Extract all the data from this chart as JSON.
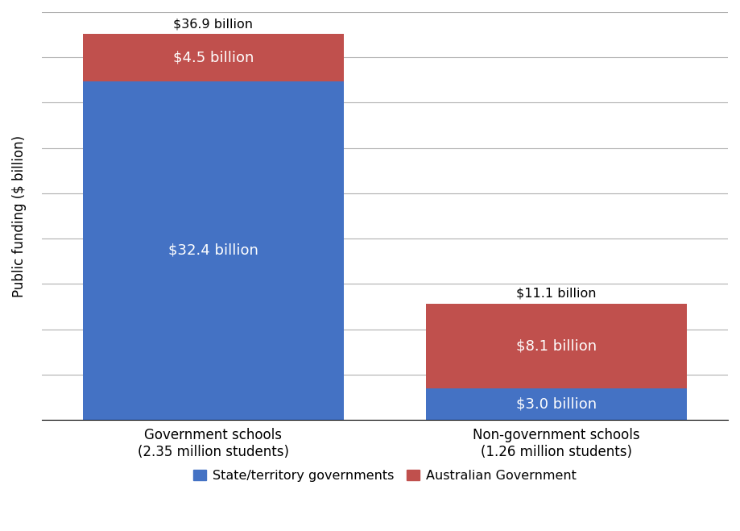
{
  "categories": [
    "Government schools\n(2.35 million students)",
    "Non-government schools\n(1.26 million students)"
  ],
  "state_values": [
    32.4,
    3.0
  ],
  "federal_values": [
    4.5,
    8.1
  ],
  "totals": [
    "$36.9 billion",
    "$11.1 billion"
  ],
  "state_labels": [
    "$32.4 billion",
    "$3.0 billion"
  ],
  "federal_labels": [
    "$4.5 billion",
    "$8.1 billion"
  ],
  "state_color": "#4472C4",
  "federal_color": "#C0504D",
  "ylabel": "Public funding ($ billion)",
  "legend_state": "State/territory governments",
  "legend_federal": "Australian Government",
  "ylim": [
    0,
    39
  ],
  "num_gridlines": 9,
  "background_color": "#ffffff",
  "grid_color": "#b0b0b0",
  "bar_width": 0.38,
  "bar_positions": [
    0.25,
    0.75
  ]
}
